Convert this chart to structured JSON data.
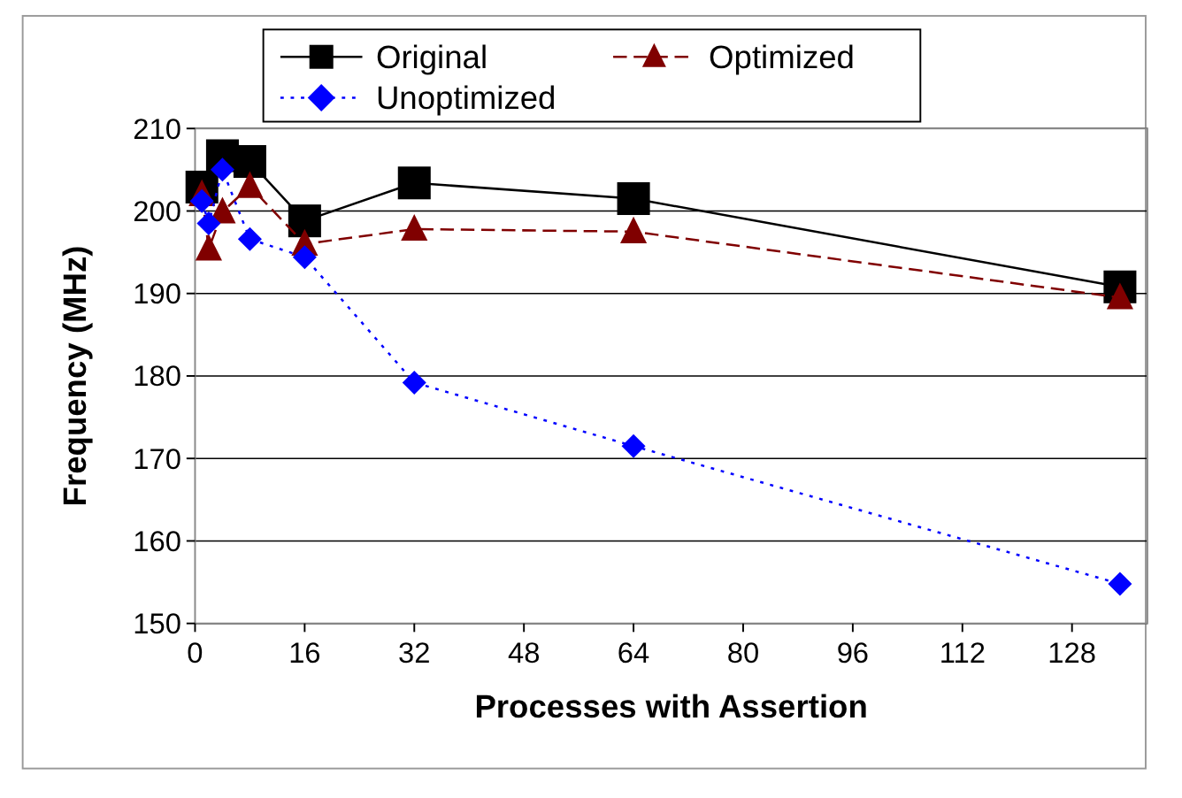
{
  "chart_data": {
    "type": "line",
    "xlabel": "Processes with Assertion",
    "ylabel": "Frequency (MHz)",
    "x": [
      1,
      2,
      4,
      8,
      16,
      32,
      64,
      135
    ],
    "series": [
      {
        "name": "Original",
        "color": "#000000",
        "marker": "square",
        "line_style": "solid",
        "values": [
          202.9,
          null,
          206.7,
          206,
          198.8,
          203.4,
          201.5,
          190.8
        ]
      },
      {
        "name": "Optimized",
        "color": "#800000",
        "marker": "triangle",
        "line_style": "dashed",
        "values": [
          202,
          195.4,
          199.9,
          203,
          196,
          197.8,
          197.5,
          189.5
        ]
      },
      {
        "name": "Unoptimized",
        "color": "#0000ff",
        "marker": "diamond",
        "line_style": "dotted",
        "values": [
          201.2,
          198.5,
          205,
          196.6,
          194.4,
          179.2,
          171.5,
          154.8
        ]
      }
    ],
    "xlim": [
      0,
      139
    ],
    "xticks": [
      0,
      16,
      32,
      48,
      64,
      80,
      96,
      112,
      128
    ],
    "ylim": [
      150,
      210
    ],
    "yticks": [
      150,
      160,
      170,
      180,
      190,
      200,
      210
    ],
    "grid": "y",
    "legend": "top"
  }
}
